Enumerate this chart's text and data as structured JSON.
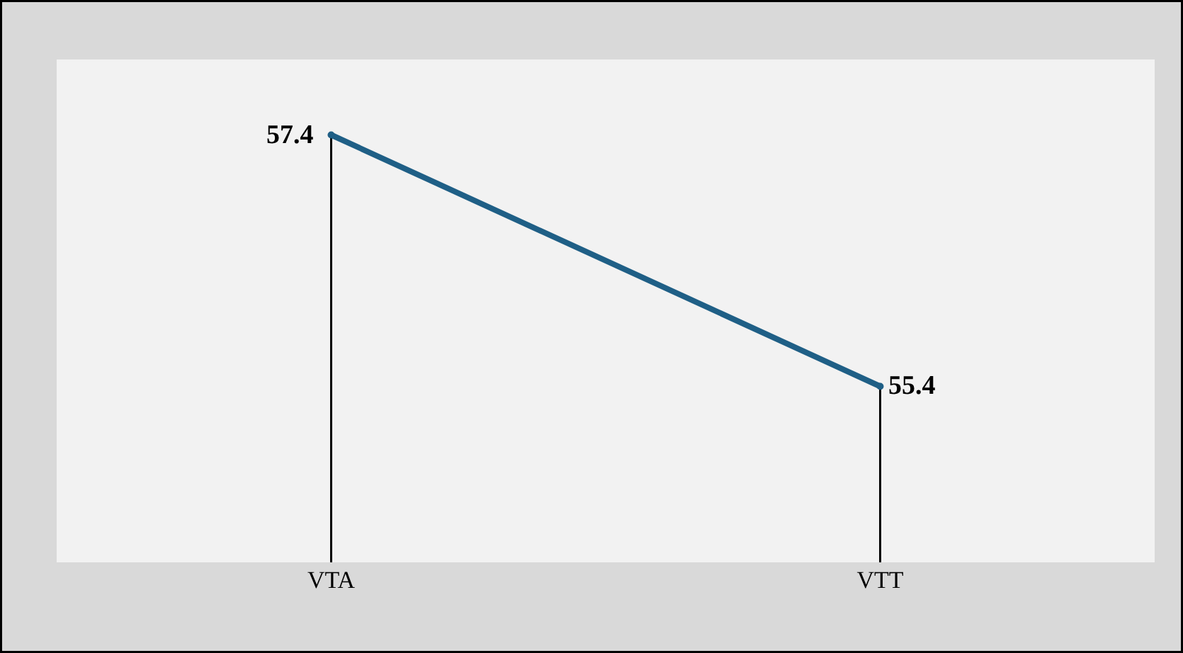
{
  "chart_data": {
    "type": "lollipop",
    "categories": [
      "VTA",
      "VTT"
    ],
    "values": [
      57.4,
      55.4
    ],
    "color": "#1f5f86",
    "data_labels": true,
    "tick_labels": "x"
  }
}
